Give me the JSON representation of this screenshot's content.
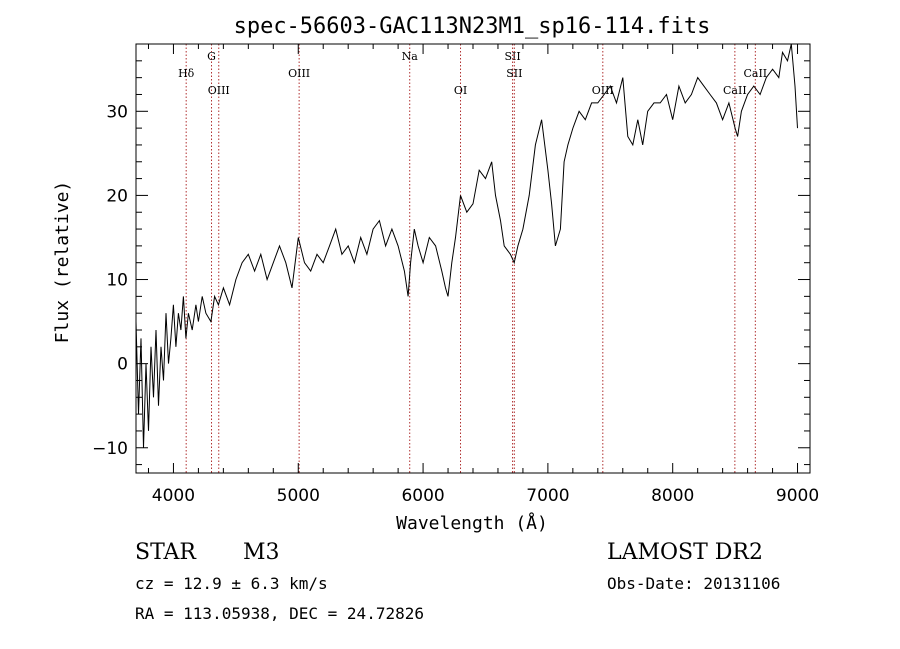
{
  "chart_data": {
    "type": "line",
    "title": "spec-56603-GAC113N23M1_sp16-114.fits",
    "xlabel": "Wavelength (Å)",
    "ylabel": "Flux (relative)",
    "xlim": [
      3700,
      9100
    ],
    "ylim": [
      -13,
      38
    ],
    "xticks": [
      4000,
      5000,
      6000,
      7000,
      8000,
      9000
    ],
    "xtick_labels": [
      "4000",
      "5000",
      "6000",
      "7000",
      "8000",
      "9000"
    ],
    "yticks": [
      -10,
      0,
      10,
      20,
      30
    ],
    "ytick_labels": [
      "−10",
      "0",
      "10",
      "20",
      "30"
    ],
    "grid": false,
    "series": [
      {
        "name": "",
        "x": [
          3700,
          3720,
          3740,
          3760,
          3780,
          3800,
          3820,
          3840,
          3860,
          3880,
          3900,
          3920,
          3940,
          3960,
          3980,
          4000,
          4020,
          4040,
          4060,
          4080,
          4100,
          4120,
          4150,
          4180,
          4200,
          4230,
          4260,
          4300,
          4330,
          4360,
          4400,
          4450,
          4500,
          4550,
          4600,
          4650,
          4700,
          4750,
          4800,
          4850,
          4900,
          4950,
          5000,
          5050,
          5100,
          5150,
          5200,
          5250,
          5300,
          5350,
          5400,
          5450,
          5500,
          5550,
          5600,
          5650,
          5700,
          5750,
          5800,
          5850,
          5880,
          5900,
          5930,
          5960,
          6000,
          6050,
          6100,
          6150,
          6180,
          6200,
          6230,
          6260,
          6300,
          6350,
          6400,
          6450,
          6500,
          6550,
          6580,
          6620,
          6650,
          6700,
          6730,
          6760,
          6800,
          6850,
          6900,
          6950,
          7000,
          7030,
          7060,
          7100,
          7130,
          7160,
          7200,
          7250,
          7300,
          7350,
          7400,
          7450,
          7500,
          7550,
          7600,
          7640,
          7680,
          7720,
          7760,
          7800,
          7850,
          7900,
          7950,
          8000,
          8050,
          8100,
          8150,
          8200,
          8250,
          8300,
          8350,
          8400,
          8450,
          8500,
          8520,
          8550,
          8600,
          8650,
          8700,
          8750,
          8800,
          8850,
          8880,
          8920,
          8950,
          8980,
          9000
        ],
        "y": [
          5,
          -6,
          3,
          -10,
          0,
          -8,
          2,
          -4,
          4,
          -5,
          2,
          -2,
          6,
          0,
          3,
          7,
          2,
          6,
          4,
          8,
          3,
          6,
          4,
          7,
          5,
          8,
          6,
          5,
          8,
          7,
          9,
          7,
          10,
          12,
          13,
          11,
          13,
          10,
          12,
          14,
          12,
          9,
          15,
          12,
          11,
          13,
          12,
          14,
          16,
          13,
          14,
          12,
          15,
          13,
          16,
          17,
          14,
          16,
          14,
          11,
          8,
          12,
          16,
          14,
          12,
          15,
          14,
          11,
          9,
          8,
          12,
          15,
          20,
          18,
          19,
          23,
          22,
          24,
          20,
          17,
          14,
          13,
          12,
          14,
          16,
          20,
          26,
          29,
          23,
          19,
          14,
          16,
          24,
          26,
          28,
          30,
          29,
          31,
          31,
          32,
          33,
          31,
          34,
          27,
          26,
          29,
          26,
          30,
          31,
          31,
          32,
          29,
          33,
          31,
          32,
          34,
          33,
          32,
          31,
          29,
          31,
          28,
          27,
          30,
          32,
          33,
          32,
          34,
          35,
          34,
          37,
          36,
          38,
          33,
          28
        ]
      }
    ],
    "line_markers": [
      {
        "name": "Hδ",
        "x": 4102,
        "row": 1
      },
      {
        "name": "G",
        "x": 4305,
        "row": 0
      },
      {
        "name": "OIII",
        "x": 4363,
        "row": 2
      },
      {
        "name": "OIII",
        "x": 5007,
        "row": 1
      },
      {
        "name": "Na",
        "x": 5893,
        "row": 0
      },
      {
        "name": "OI",
        "x": 6300,
        "row": 2
      },
      {
        "name": "SII",
        "x": 6717,
        "row": 0
      },
      {
        "name": "SII",
        "x": 6731,
        "row": 1
      },
      {
        "name": "OIII",
        "x": 7440,
        "row": 2
      },
      {
        "name": "CaII",
        "x": 8498,
        "row": 2
      },
      {
        "name": "CaII",
        "x": 8662,
        "row": 1
      }
    ]
  },
  "info": {
    "class": "STAR",
    "subclass": "M3",
    "survey": "LAMOST DR2",
    "cz": "cz = 12.9 ± 6.3 km/s",
    "obs_date": "Obs-Date: 20131106",
    "coords": "RA = 113.05938, DEC =  24.72826"
  },
  "colors": {
    "line": "#000000",
    "marker_line": "#b03030"
  }
}
